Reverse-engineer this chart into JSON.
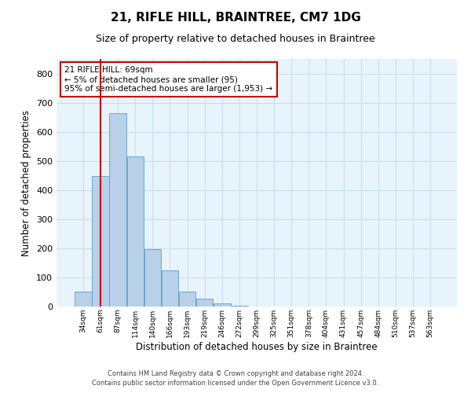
{
  "title1": "21, RIFLE HILL, BRAINTREE, CM7 1DG",
  "title2": "Size of property relative to detached houses in Braintree",
  "xlabel": "Distribution of detached houses by size in Braintree",
  "ylabel": "Number of detached properties",
  "bar_labels": [
    "34sqm",
    "61sqm",
    "87sqm",
    "114sqm",
    "140sqm",
    "166sqm",
    "193sqm",
    "219sqm",
    "246sqm",
    "272sqm",
    "299sqm",
    "325sqm",
    "351sqm",
    "378sqm",
    "404sqm",
    "431sqm",
    "457sqm",
    "484sqm",
    "510sqm",
    "537sqm",
    "563sqm"
  ],
  "bar_values": [
    50,
    447,
    665,
    515,
    197,
    125,
    51,
    27,
    10,
    3,
    1,
    0,
    0,
    0,
    0,
    0,
    0,
    0,
    0,
    0,
    0
  ],
  "bar_color": "#b8d0e8",
  "bar_edge_color": "#5b9ec9",
  "vline_x": 1,
  "vline_color": "#cc0000",
  "annotation_text": "21 RIFLE HILL: 69sqm\n← 5% of detached houses are smaller (95)\n95% of semi-detached houses are larger (1,953) →",
  "annotation_box_color": "#ffffff",
  "annotation_box_edge": "#cc0000",
  "ylim": [
    0,
    850
  ],
  "yticks": [
    0,
    100,
    200,
    300,
    400,
    500,
    600,
    700,
    800
  ],
  "grid_color": "#c8dff0",
  "bg_color": "#e8f4fb",
  "footer1": "Contains HM Land Registry data © Crown copyright and database right 2024.",
  "footer2": "Contains public sector information licensed under the Open Government Licence v3.0."
}
